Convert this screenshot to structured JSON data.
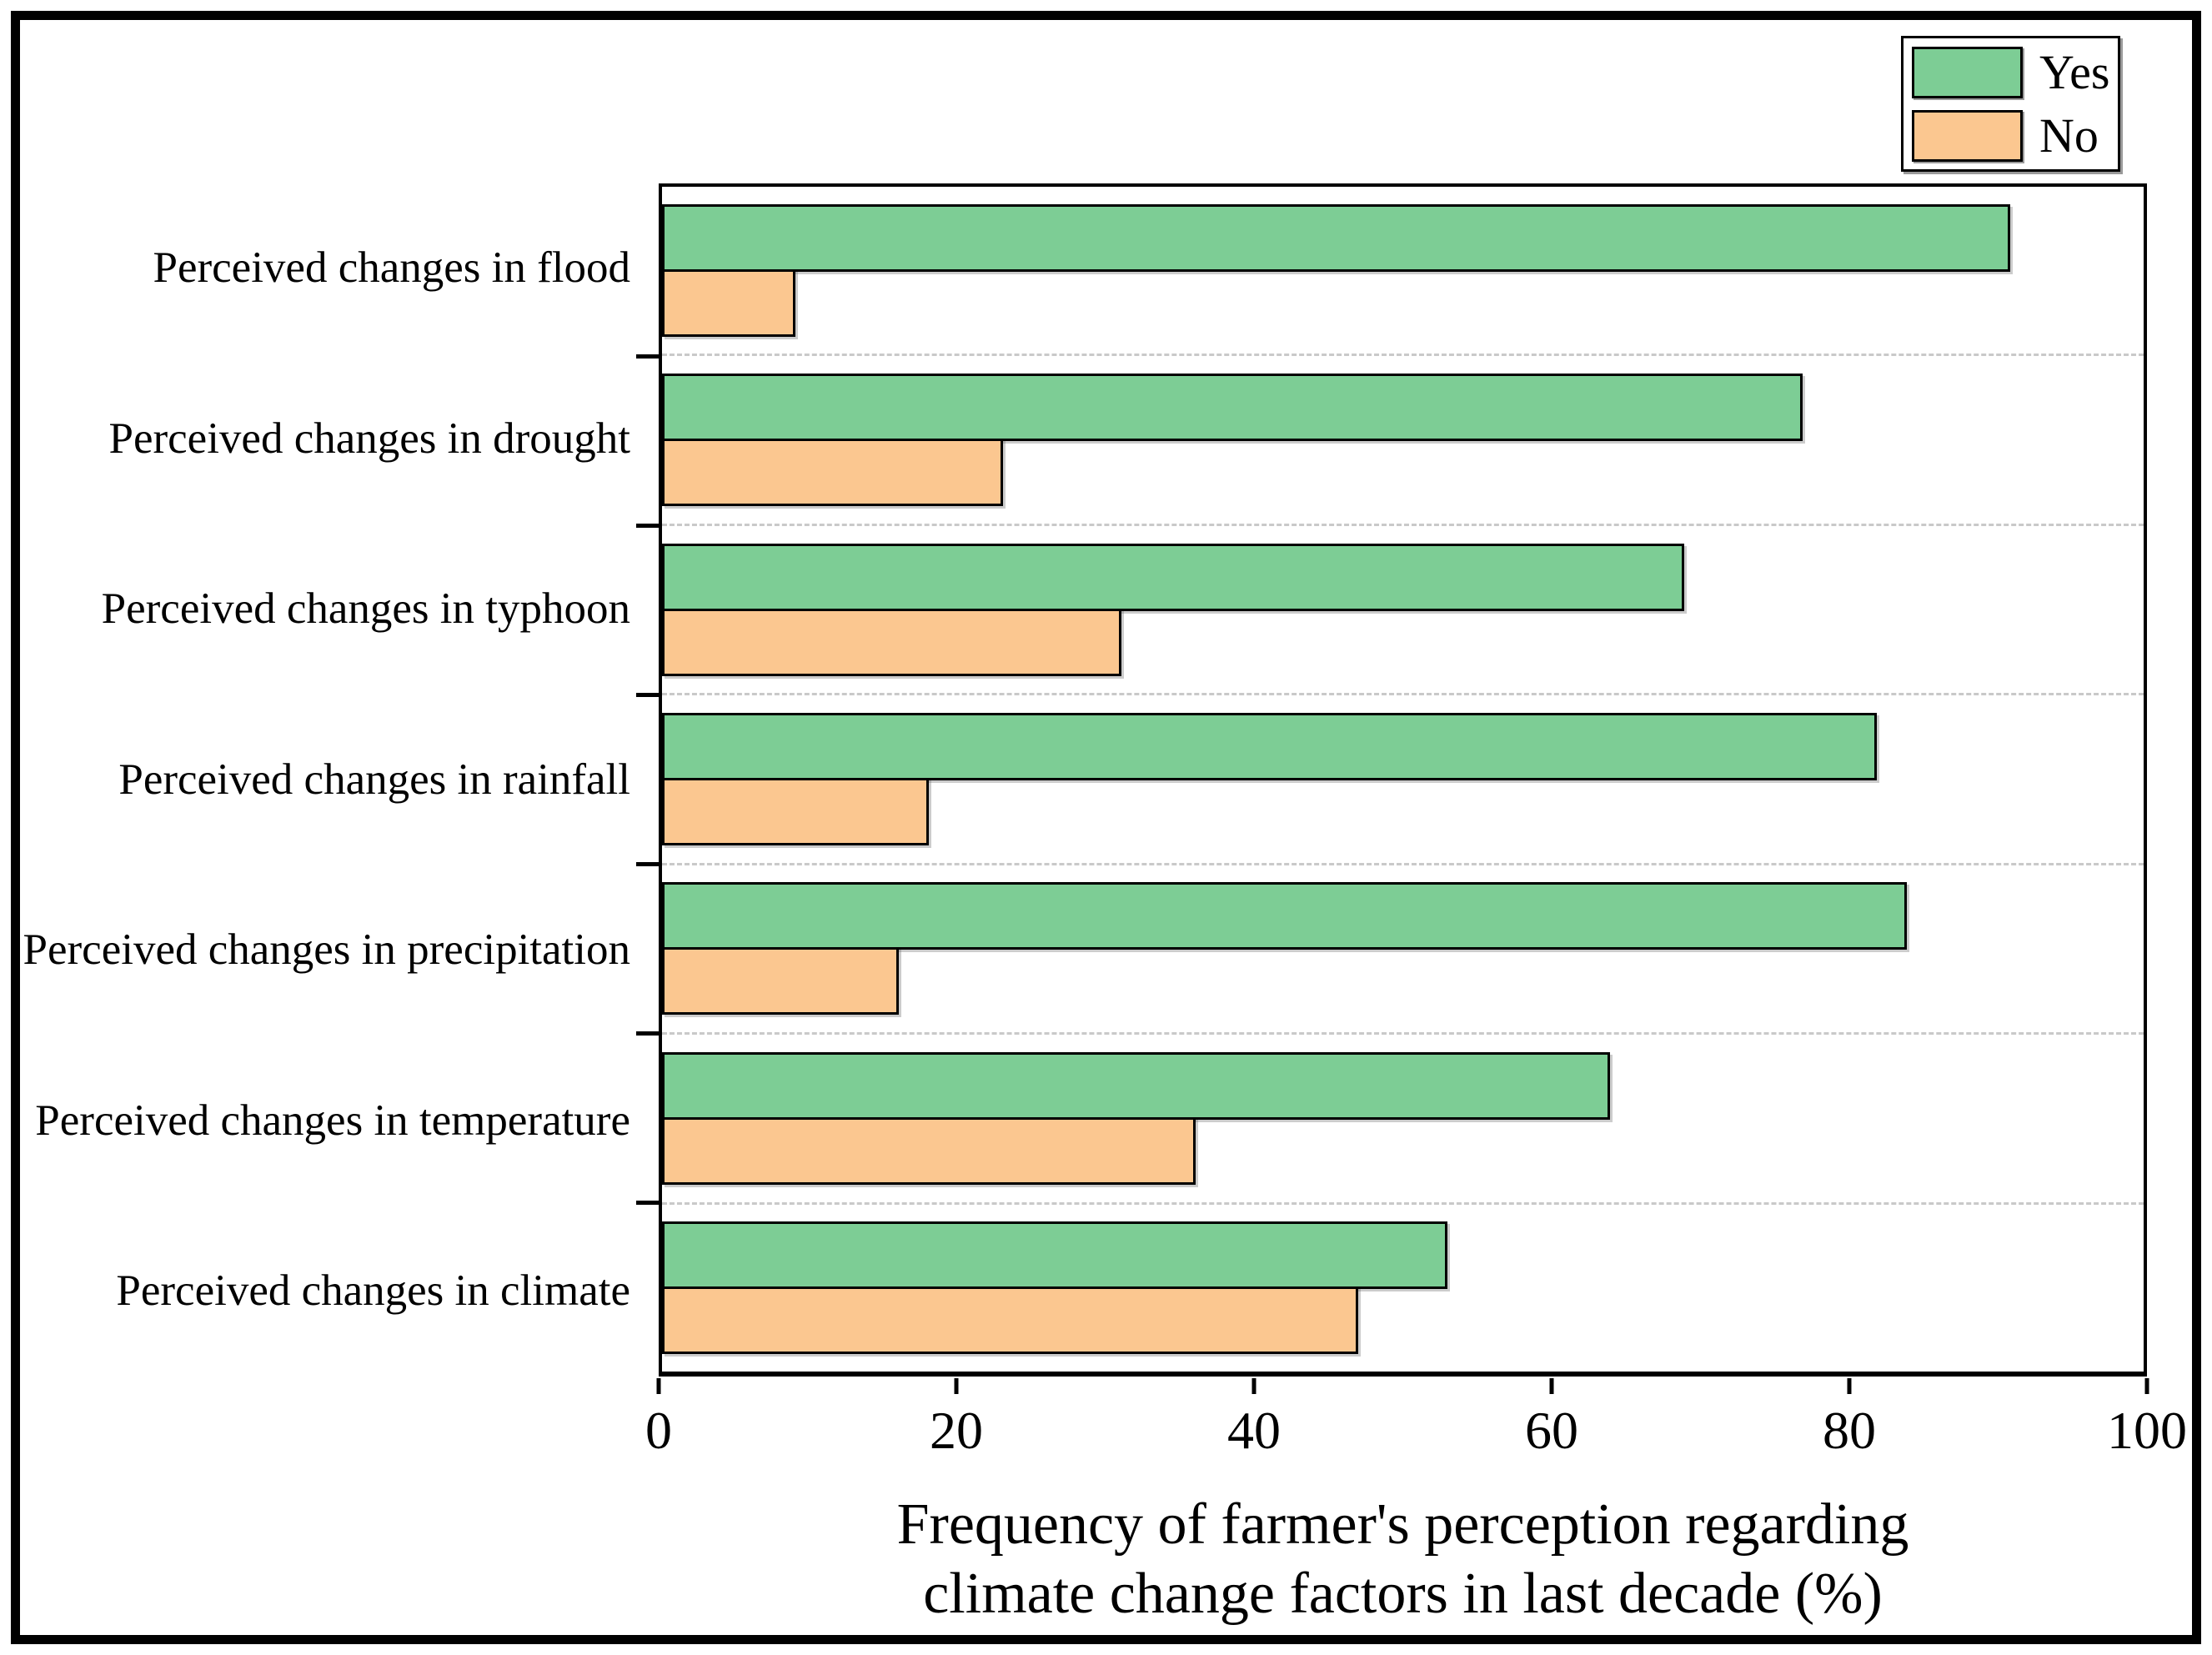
{
  "figure": {
    "background": "#ffffff",
    "border_color": "#000000"
  },
  "chart_data": {
    "type": "bar",
    "orientation": "horizontal",
    "categories": [
      "Perceived changes in flood",
      "Perceived changes in drought",
      "Perceived changes in typhoon",
      "Perceived changes in rainfall",
      "Perceived changes in precipitation",
      "Perceived changes in temperature",
      "Perceived changes in climate"
    ],
    "series": [
      {
        "name": "Yes",
        "color": "#7DCD95",
        "values": [
          91,
          77,
          69,
          82,
          84,
          64,
          53
        ]
      },
      {
        "name": "No",
        "color": "#FBC790",
        "values": [
          9,
          23,
          31,
          18,
          16,
          36,
          47
        ]
      }
    ],
    "bar_edge_color": "#000000",
    "xlim": [
      0,
      100
    ],
    "xticks": [
      "0",
      "20",
      "40",
      "60",
      "80",
      "100"
    ],
    "xlabel_lines": [
      "Frequency of farmer's perception regarding",
      "climate change factors in last decade (%)"
    ],
    "grid": "dashed gray horizontal separators between category groups",
    "grid_color": "#c9c9c9",
    "legend_position": "top-right"
  }
}
